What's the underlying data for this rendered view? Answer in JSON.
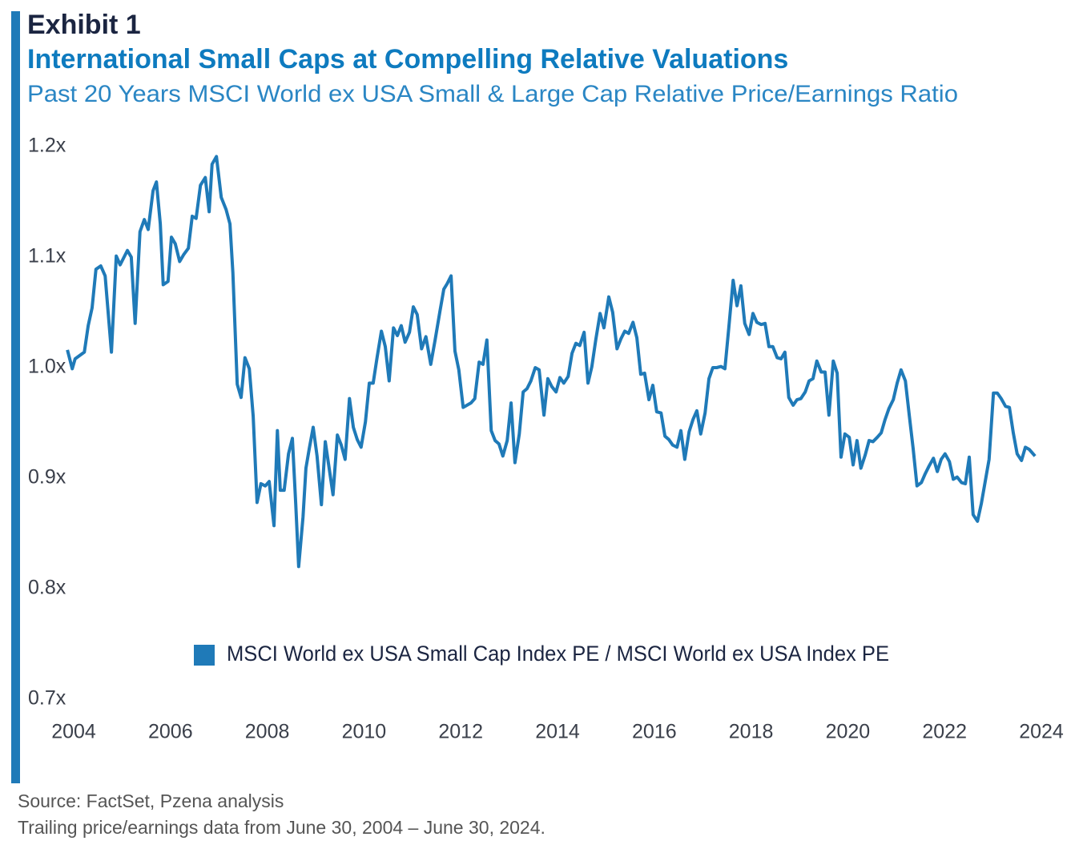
{
  "chart_data": {
    "type": "line",
    "exhibit": "Exhibit 1",
    "title": "International Small Caps at Compelling Relative Valuations",
    "subtitle": "Past 20 Years MSCI World ex USA Small & Large Cap Relative Price/Earnings Ratio",
    "source": "Source: FactSet, Pzena analysis",
    "note": "Trailing price/earnings data from June 30, 2004 – June 30, 2024.",
    "xlim": [
      2004,
      2024
    ],
    "xticks": [
      2004,
      2006,
      2008,
      2010,
      2012,
      2014,
      2016,
      2018,
      2020,
      2022,
      2024
    ],
    "ylim": [
      0.7,
      1.2
    ],
    "yticks": [
      {
        "value": 0.7,
        "label": "0.7x"
      },
      {
        "value": 0.8,
        "label": "0.8x"
      },
      {
        "value": 0.9,
        "label": "0.9x"
      },
      {
        "value": 1.0,
        "label": "1.0x"
      },
      {
        "value": 1.1,
        "label": "1.1x"
      },
      {
        "value": 1.2,
        "label": "1.2x"
      }
    ],
    "x": [
      2003.87,
      2003.97,
      2004.03,
      2004.22,
      2004.3,
      2004.38,
      2004.46,
      2004.56,
      2004.65,
      2004.78,
      2004.88,
      2004.96,
      2005.11,
      2005.19,
      2005.27,
      2005.37,
      2005.46,
      2005.54,
      2005.64,
      2005.71,
      2005.79,
      2005.85,
      2005.95,
      2006.02,
      2006.1,
      2006.19,
      2006.27,
      2006.37,
      2006.45,
      2006.53,
      2006.62,
      2006.72,
      2006.8,
      2006.86,
      2006.95,
      2007.05,
      2007.15,
      2007.23,
      2007.29,
      2007.38,
      2007.46,
      2007.54,
      2007.63,
      2007.71,
      2007.79,
      2007.87,
      2007.96,
      2008.04,
      2008.14,
      2008.21,
      2008.27,
      2008.35,
      2008.44,
      2008.52,
      2008.59,
      2008.65,
      2008.74,
      2008.8,
      2008.87,
      2008.95,
      2009.03,
      2009.12,
      2009.2,
      2009.28,
      2009.36,
      2009.45,
      2009.53,
      2009.61,
      2009.7,
      2009.78,
      2009.86,
      2009.94,
      2010.03,
      2010.11,
      2010.19,
      2010.27,
      2010.36,
      2010.44,
      2010.52,
      2010.61,
      2010.69,
      2010.77,
      2010.85,
      2010.94,
      2011.02,
      2011.1,
      2011.19,
      2011.28,
      2011.38,
      2011.47,
      2011.57,
      2011.65,
      2011.72,
      2011.8,
      2011.88,
      2011.96,
      2012.05,
      2012.13,
      2012.21,
      2012.29,
      2012.38,
      2012.46,
      2012.54,
      2012.63,
      2012.71,
      2012.79,
      2012.87,
      2012.96,
      2013.04,
      2013.12,
      2013.21,
      2013.29,
      2013.37,
      2013.45,
      2013.54,
      2013.62,
      2013.72,
      2013.8,
      2013.88,
      2013.97,
      2014.05,
      2014.13,
      2014.22,
      2014.3,
      2014.38,
      2014.46,
      2014.55,
      2014.63,
      2014.71,
      2014.79,
      2014.88,
      2014.96,
      2015.06,
      2015.14,
      2015.23,
      2015.31,
      2015.39,
      2015.47,
      2015.56,
      2015.64,
      2015.72,
      2015.8,
      2015.89,
      2015.97,
      2016.05,
      2016.14,
      2016.22,
      2016.3,
      2016.38,
      2016.47,
      2016.55,
      2016.63,
      2016.72,
      2016.8,
      2016.88,
      2016.96,
      2017.05,
      2017.13,
      2017.21,
      2017.29,
      2017.38,
      2017.46,
      2017.54,
      2017.63,
      2017.71,
      2017.79,
      2017.87,
      2017.96,
      2018.04,
      2018.12,
      2018.21,
      2018.29,
      2018.37,
      2018.45,
      2018.54,
      2018.62,
      2018.7,
      2018.78,
      2018.87,
      2018.95,
      2019.03,
      2019.12,
      2019.2,
      2019.28,
      2019.36,
      2019.45,
      2019.53,
      2019.61,
      2019.7,
      2019.78,
      2019.86,
      2019.94,
      2020.03,
      2020.11,
      2020.19,
      2020.27,
      2020.36,
      2020.44,
      2020.52,
      2020.61,
      2020.69,
      2020.77,
      2020.85,
      2020.94,
      2021.02,
      2021.1,
      2021.19,
      2021.27,
      2021.35,
      2021.43,
      2021.52,
      2021.6,
      2021.68,
      2021.77,
      2021.85,
      2021.93,
      2022.01,
      2022.1,
      2022.18,
      2022.26,
      2022.35,
      2022.43,
      2022.51,
      2022.59,
      2022.68,
      2022.76,
      2022.84,
      2022.92,
      2023.01,
      2023.09,
      2023.17,
      2023.26,
      2023.34,
      2023.42,
      2023.5,
      2023.59,
      2023.67,
      2023.75,
      2023.87
    ],
    "series": [
      {
        "name": "MSCI World ex USA Small Cap Index PE / MSCI World ex USA Index PE",
        "color": "#1f7ab8",
        "values": [
          1.016,
          0.999,
          1.008,
          1.014,
          1.038,
          1.054,
          1.089,
          1.092,
          1.083,
          1.014,
          1.101,
          1.093,
          1.106,
          1.1,
          1.04,
          1.123,
          1.134,
          1.125,
          1.16,
          1.168,
          1.13,
          1.075,
          1.078,
          1.118,
          1.112,
          1.096,
          1.102,
          1.108,
          1.137,
          1.135,
          1.165,
          1.172,
          1.141,
          1.184,
          1.191,
          1.154,
          1.143,
          1.13,
          1.086,
          0.985,
          0.973,
          1.009,
          0.999,
          0.956,
          0.878,
          0.895,
          0.893,
          0.897,
          0.857,
          0.943,
          0.889,
          0.889,
          0.922,
          0.936,
          0.876,
          0.82,
          0.865,
          0.909,
          0.927,
          0.946,
          0.92,
          0.876,
          0.933,
          0.909,
          0.885,
          0.939,
          0.93,
          0.917,
          0.972,
          0.946,
          0.935,
          0.928,
          0.951,
          0.986,
          0.986,
          1.009,
          1.033,
          1.019,
          0.988,
          1.036,
          1.029,
          1.038,
          1.023,
          1.032,
          1.055,
          1.048,
          1.017,
          1.028,
          1.003,
          1.025,
          1.051,
          1.071,
          1.076,
          1.083,
          1.015,
          0.998,
          0.964,
          0.966,
          0.968,
          0.972,
          1.005,
          1.003,
          1.025,
          0.943,
          0.934,
          0.931,
          0.92,
          0.934,
          0.968,
          0.914,
          0.94,
          0.978,
          0.981,
          0.988,
          1.0,
          0.998,
          0.957,
          0.99,
          0.983,
          0.978,
          0.991,
          0.986,
          0.992,
          1.013,
          1.022,
          1.02,
          1.032,
          0.986,
          1.001,
          1.025,
          1.049,
          1.036,
          1.064,
          1.05,
          1.017,
          1.026,
          1.033,
          1.031,
          1.041,
          1.027,
          0.994,
          0.995,
          0.971,
          0.984,
          0.96,
          0.959,
          0.938,
          0.935,
          0.93,
          0.928,
          0.943,
          0.917,
          0.942,
          0.953,
          0.961,
          0.94,
          0.959,
          0.99,
          1.0,
          1.0,
          1.001,
          0.999,
          1.036,
          1.079,
          1.056,
          1.074,
          1.04,
          1.03,
          1.049,
          1.041,
          1.039,
          1.04,
          1.019,
          1.019,
          1.009,
          1.008,
          1.014,
          0.973,
          0.966,
          0.971,
          0.972,
          0.978,
          0.988,
          0.99,
          1.006,
          0.996,
          0.996,
          0.957,
          1.006,
          0.995,
          0.919,
          0.94,
          0.937,
          0.912,
          0.934,
          0.909,
          0.921,
          0.934,
          0.933,
          0.937,
          0.941,
          0.953,
          0.963,
          0.971,
          0.986,
          0.998,
          0.988,
          0.957,
          0.927,
          0.893,
          0.896,
          0.904,
          0.911,
          0.918,
          0.906,
          0.917,
          0.922,
          0.915,
          0.899,
          0.901,
          0.896,
          0.895,
          0.919,
          0.867,
          0.861,
          0.877,
          0.897,
          0.917,
          0.977,
          0.977,
          0.972,
          0.965,
          0.964,
          0.941,
          0.922,
          0.916,
          0.928,
          0.926,
          0.92
        ]
      }
    ]
  }
}
